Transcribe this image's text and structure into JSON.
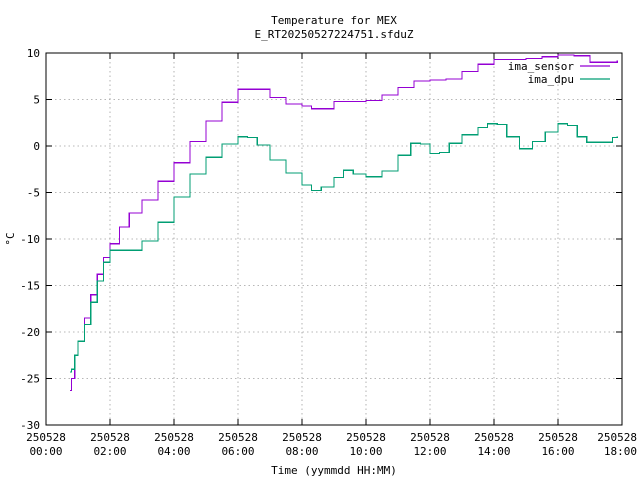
{
  "chart_data": {
    "type": "line",
    "title": "Temperature for MEX",
    "subtitle": "E_RT20250527224751.sfduZ",
    "xlabel": "Time (yymmdd HH:MM)",
    "ylabel": "°C",
    "xlim": [
      0,
      18
    ],
    "ylim": [
      -30,
      10
    ],
    "grid": true,
    "legend_position": "top-right",
    "x_ticks": [
      {
        "value": 0,
        "date": "250528",
        "time": "00:00"
      },
      {
        "value": 2,
        "date": "250528",
        "time": "02:00"
      },
      {
        "value": 4,
        "date": "250528",
        "time": "04:00"
      },
      {
        "value": 6,
        "date": "250528",
        "time": "06:00"
      },
      {
        "value": 8,
        "date": "250528",
        "time": "08:00"
      },
      {
        "value": 10,
        "date": "250528",
        "time": "10:00"
      },
      {
        "value": 12,
        "date": "250528",
        "time": "12:00"
      },
      {
        "value": 14,
        "date": "250528",
        "time": "14:00"
      },
      {
        "value": 16,
        "date": "250528",
        "time": "16:00"
      },
      {
        "value": 18,
        "date": "250528",
        "time": "18:00"
      }
    ],
    "y_ticks": [
      10,
      5,
      0,
      -5,
      -10,
      -15,
      -20,
      -25,
      -30
    ],
    "series": [
      {
        "name": "ima_sensor",
        "color": "#9400d3",
        "x": [
          0.75,
          0.8,
          0.9,
          1.0,
          1.2,
          1.4,
          1.6,
          1.8,
          2.0,
          2.3,
          2.6,
          3.0,
          3.5,
          4.0,
          4.5,
          5.0,
          5.5,
          6.0,
          6.5,
          7.0,
          7.5,
          8.0,
          8.3,
          8.6,
          9.0,
          9.5,
          10.0,
          10.5,
          11.0,
          11.5,
          12.0,
          12.5,
          13.0,
          13.5,
          14.0,
          14.5,
          15.0,
          15.5,
          16.0,
          16.5,
          17.0,
          17.5,
          17.85
        ],
        "values": [
          -26.3,
          -25.0,
          -22.5,
          -21.0,
          -18.5,
          -16.0,
          -13.8,
          -12.0,
          -10.5,
          -8.7,
          -7.2,
          -5.8,
          -3.8,
          -1.8,
          0.5,
          2.7,
          4.7,
          6.1,
          6.1,
          5.2,
          4.5,
          4.3,
          4.0,
          4.0,
          4.8,
          4.8,
          4.9,
          5.5,
          6.3,
          7.0,
          7.1,
          7.2,
          8.0,
          8.8,
          9.3,
          9.3,
          9.4,
          9.6,
          9.8,
          9.7,
          9.0,
          9.0,
          9.2
        ]
      },
      {
        "name": "ima_dpu",
        "color": "#009e73",
        "x": [
          0.75,
          0.8,
          0.9,
          1.0,
          1.2,
          1.4,
          1.6,
          1.8,
          2.0,
          2.5,
          3.0,
          3.5,
          4.0,
          4.5,
          5.0,
          5.5,
          6.0,
          6.3,
          6.6,
          7.0,
          7.5,
          8.0,
          8.3,
          8.6,
          9.0,
          9.3,
          9.6,
          10.0,
          10.5,
          11.0,
          11.4,
          11.7,
          12.0,
          12.3,
          12.6,
          13.0,
          13.5,
          13.8,
          14.1,
          14.4,
          14.8,
          15.2,
          15.6,
          16.0,
          16.3,
          16.6,
          16.9,
          17.3,
          17.7,
          17.85
        ],
        "values": [
          -24.3,
          -24.0,
          -22.5,
          -21.0,
          -19.2,
          -16.8,
          -14.5,
          -12.5,
          -11.2,
          -11.2,
          -10.2,
          -8.2,
          -5.5,
          -3.0,
          -1.2,
          0.2,
          1.0,
          0.9,
          0.1,
          -1.5,
          -2.9,
          -4.2,
          -4.8,
          -4.4,
          -3.4,
          -2.6,
          -3.0,
          -3.3,
          -2.7,
          -1.0,
          0.3,
          0.2,
          -0.8,
          -0.7,
          0.3,
          1.2,
          2.0,
          2.4,
          2.3,
          1.0,
          -0.3,
          0.5,
          1.5,
          2.4,
          2.2,
          1.0,
          0.4,
          0.4,
          0.9,
          1.0
        ]
      }
    ]
  }
}
